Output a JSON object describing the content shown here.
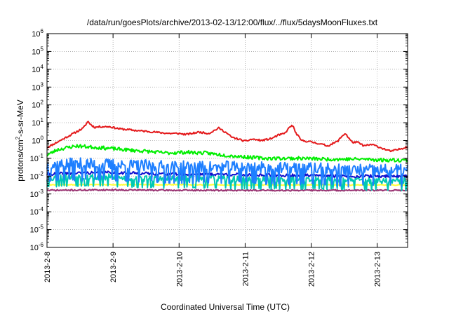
{
  "chart_data": {
    "type": "line",
    "title": "/data/run/goesPlots/archive/2013-02-13/12:00/flux/../flux/5daysMoonFluxes.txt",
    "xlabel": "Coordinated Universal Time (UTC)",
    "ylabel_parts": [
      "protons/cm",
      "2",
      "-s-sr-MeV"
    ],
    "y_scale": "log",
    "ylim": [
      1e-06,
      1000000.0
    ],
    "y_tick_exponents": [
      -6,
      -5,
      -4,
      -3,
      -2,
      -1,
      0,
      1,
      2,
      3,
      4,
      5,
      6
    ],
    "y_tick_base": "10",
    "x_ticks": [
      "2013-2-8",
      "2013-2-9",
      "2013-2-10",
      "2013-2-11",
      "2013-2-12",
      "2013-2-13"
    ],
    "x_range_days": [
      0,
      5.46
    ],
    "grid": true,
    "legend": "none",
    "series": [
      {
        "color": "#e41a1c",
        "noise": 0.05,
        "seed": 11,
        "x": [
          0,
          0.2,
          0.4,
          0.55,
          0.62,
          0.66,
          0.72,
          0.8,
          0.95,
          1.1,
          1.25,
          1.4,
          1.55,
          1.7,
          1.85,
          2.0,
          2.1,
          2.2,
          2.3,
          2.45,
          2.6,
          2.7,
          2.8,
          2.9,
          3.0,
          3.1,
          3.25,
          3.4,
          3.5,
          3.6,
          3.68,
          3.72,
          3.76,
          3.85,
          3.95,
          4.1,
          4.25,
          4.4,
          4.48,
          4.52,
          4.56,
          4.62,
          4.7,
          4.8,
          4.92,
          5.05,
          5.2,
          5.3,
          5.46
        ],
        "y": [
          0.4,
          1.0,
          2.5,
          5.0,
          12,
          8,
          5.5,
          6,
          6,
          4.5,
          4,
          3.5,
          3.2,
          2.8,
          2.5,
          2.5,
          2.2,
          2.5,
          3,
          2.5,
          5,
          3,
          1.5,
          1.2,
          0.9,
          1.2,
          1.0,
          1.3,
          2.0,
          2.5,
          6,
          7,
          3,
          1.0,
          0.9,
          0.7,
          0.5,
          0.9,
          2.0,
          2.5,
          1.5,
          0.8,
          0.8,
          0.5,
          0.6,
          0.4,
          0.25,
          0.3,
          0.45
        ]
      },
      {
        "color": "#00ee00",
        "noise": 0.1,
        "seed": 23,
        "x": [
          0,
          0.15,
          0.3,
          0.45,
          0.6,
          0.8,
          1.0,
          1.2,
          1.5,
          1.8,
          2.1,
          2.4,
          2.7,
          3.0,
          3.3,
          3.6,
          3.9,
          4.2,
          4.5,
          4.8,
          5.1,
          5.46
        ],
        "y": [
          0.15,
          0.3,
          0.4,
          0.5,
          0.45,
          0.4,
          0.35,
          0.3,
          0.25,
          0.2,
          0.22,
          0.2,
          0.15,
          0.12,
          0.1,
          0.1,
          0.1,
          0.09,
          0.09,
          0.09,
          0.08,
          0.08
        ]
      },
      {
        "color": "#1e7fff",
        "noise": 0.38,
        "seed": 37,
        "x": [
          0,
          0.5,
          1.0,
          1.5,
          2.0,
          2.5,
          3.0,
          3.5,
          4.0,
          4.5,
          5.0,
          5.46
        ],
        "y": [
          0.04,
          0.045,
          0.04,
          0.035,
          0.03,
          0.03,
          0.03,
          0.025,
          0.025,
          0.02,
          0.02,
          0.02
        ]
      },
      {
        "color": "#1010d0",
        "noise": 0.08,
        "seed": 41,
        "x": [
          0,
          0.5,
          1.0,
          1.5,
          2.0,
          2.5,
          3.0,
          3.5,
          4.0,
          4.5,
          5.0,
          5.46
        ],
        "y": [
          0.013,
          0.015,
          0.016,
          0.014,
          0.013,
          0.013,
          0.012,
          0.011,
          0.011,
          0.01,
          0.01,
          0.01
        ]
      },
      {
        "color": "#00c8b4",
        "noise": 0.22,
        "seed": 53,
        "x": [
          0,
          0.5,
          1.0,
          1.5,
          2.0,
          2.5,
          3.0,
          3.5,
          4.0,
          4.5,
          5.0,
          5.46
        ],
        "y": [
          0.008,
          0.009,
          0.008,
          0.007,
          0.007,
          0.007,
          0.006,
          0.006,
          0.006,
          0.006,
          0.005,
          0.005
        ]
      },
      {
        "color": "#ffff33",
        "noise": 0.025,
        "seed": 61,
        "x": [
          0,
          1,
          2,
          3,
          4,
          5,
          5.46
        ],
        "y": [
          0.0033,
          0.0033,
          0.0033,
          0.0032,
          0.0032,
          0.0032,
          0.0032
        ]
      },
      {
        "color": "#983070",
        "noise": 0.04,
        "seed": 71,
        "x": [
          0,
          1,
          2,
          3,
          4,
          5,
          5.46
        ],
        "y": [
          0.0016,
          0.0017,
          0.0016,
          0.0016,
          0.0016,
          0.0016,
          0.0016
        ]
      }
    ]
  }
}
